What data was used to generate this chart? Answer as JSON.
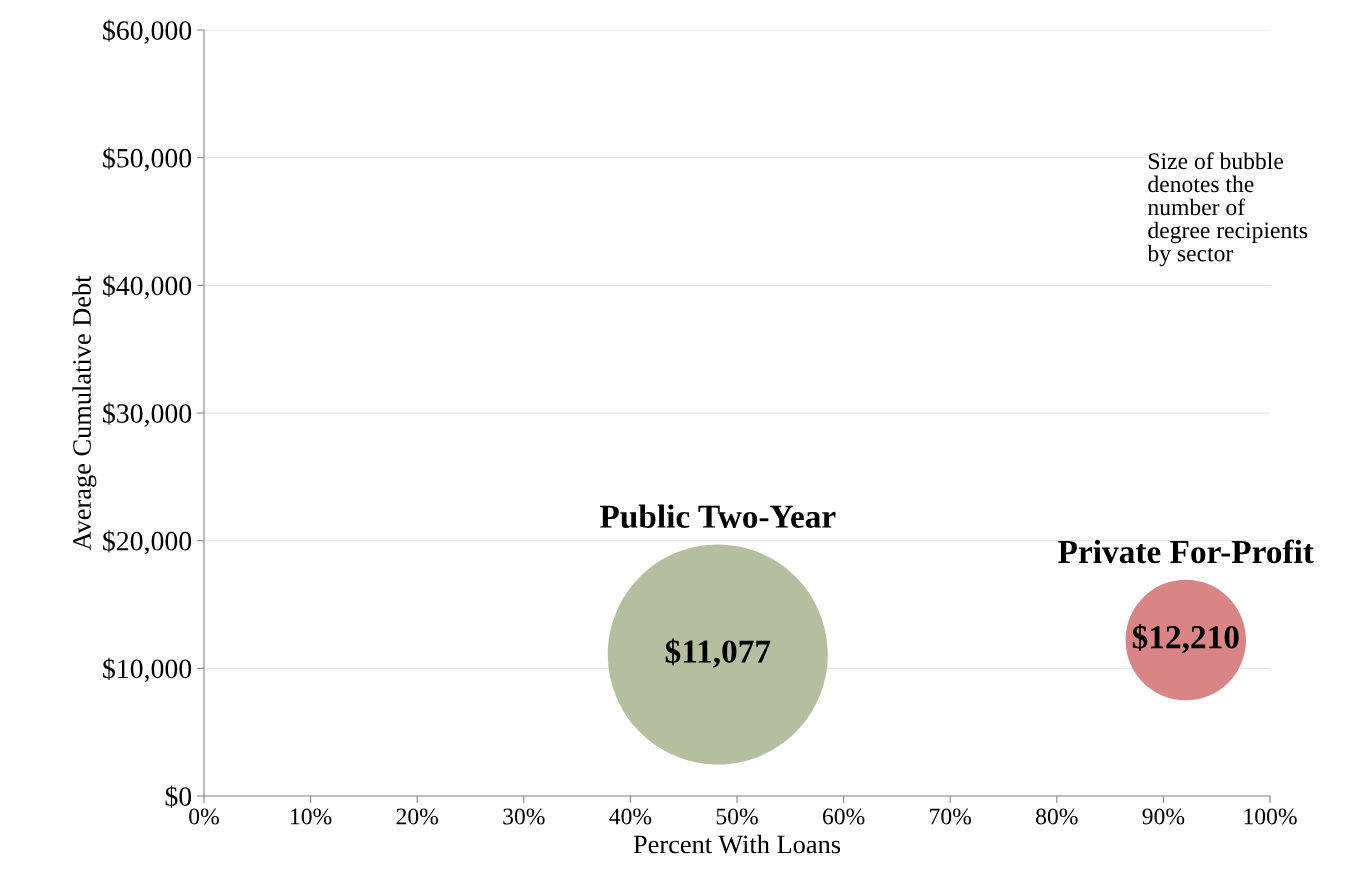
{
  "chart_data": {
    "type": "bubble",
    "xlabel": "Percent With Loans",
    "ylabel": "Average Cumulative Debt",
    "xlim": [
      0,
      100
    ],
    "xticks": [
      {
        "value": 0,
        "label": "0%"
      },
      {
        "value": 10,
        "label": "10%"
      },
      {
        "value": 20,
        "label": "20%"
      },
      {
        "value": 30,
        "label": "30%"
      },
      {
        "value": 40,
        "label": "40%"
      },
      {
        "value": 50,
        "label": "50%"
      },
      {
        "value": 60,
        "label": "60%"
      },
      {
        "value": 70,
        "label": "70%"
      },
      {
        "value": 80,
        "label": "80%"
      },
      {
        "value": 90,
        "label": "90%"
      },
      {
        "value": 100,
        "label": "100%"
      }
    ],
    "ylim": [
      0,
      60000
    ],
    "yticks": [
      {
        "value": 0,
        "label": "$0"
      },
      {
        "value": 10000,
        "label": "$10,000"
      },
      {
        "value": 20000,
        "label": "$20,000"
      },
      {
        "value": 30000,
        "label": "$30,000"
      },
      {
        "value": 40000,
        "label": "$40,000"
      },
      {
        "value": 50000,
        "label": "$50,000"
      },
      {
        "value": 60000,
        "label": "$60,000"
      }
    ],
    "grid": "y",
    "legend": false,
    "series": [
      {
        "name": "Public Two-Year",
        "color": "#b5bfa0",
        "x": [
          48.2
        ],
        "values": [
          11077
        ],
        "sizes": [
          1
        ],
        "value_labels": [
          "$11,077"
        ]
      },
      {
        "name": "Private For-Profit",
        "color": "#d98585",
        "x": [
          92.1
        ],
        "values": [
          12210
        ],
        "sizes": [
          0.3
        ],
        "value_labels": [
          "$12,210"
        ]
      }
    ],
    "annotations": [
      "Size of bubble\ndenotes the\nnumber of\ndegree recipients\nby sector"
    ]
  }
}
